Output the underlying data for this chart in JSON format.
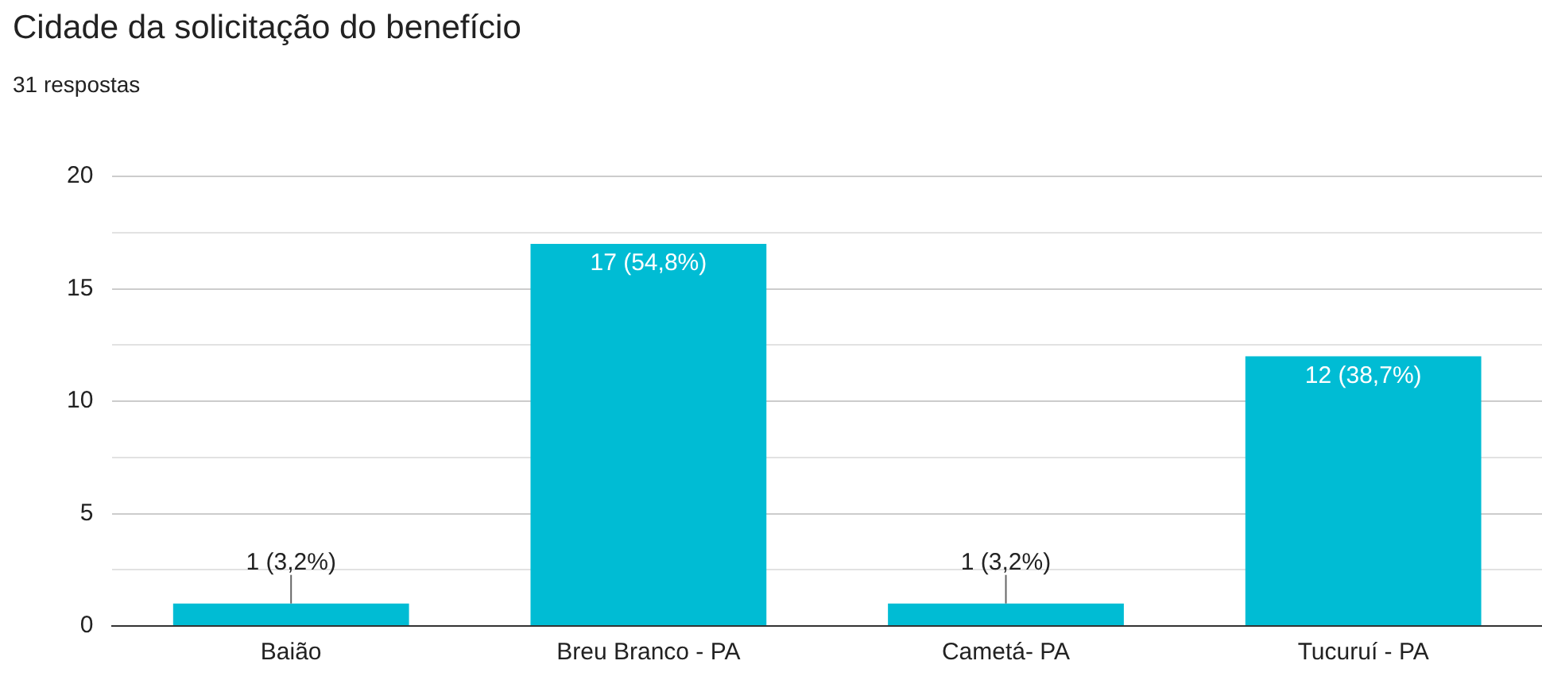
{
  "chart_data": {
    "type": "bar",
    "title": "Cidade da solicitação do benefício",
    "subtitle": "31 respostas",
    "categories": [
      "Baião",
      "Breu Branco - PA",
      "Cametá- PA",
      "Tucuruí - PA"
    ],
    "values": [
      1,
      17,
      1,
      12
    ],
    "color": "#00bcd4",
    "value_labels": [
      "1 (3,2%)",
      "17 (54,8%)",
      "1 (3,2%)",
      "12 (38,7%)"
    ],
    "ylim": [
      0,
      20
    ],
    "yticks": [
      0,
      {
        "value": 2.5,
        "label": null
      },
      5,
      {
        "value": 7.5,
        "label": null
      },
      10,
      {
        "value": 12.5,
        "label": null
      },
      15,
      {
        "value": 17.5,
        "label": null
      },
      20
    ],
    "grid": "y"
  }
}
